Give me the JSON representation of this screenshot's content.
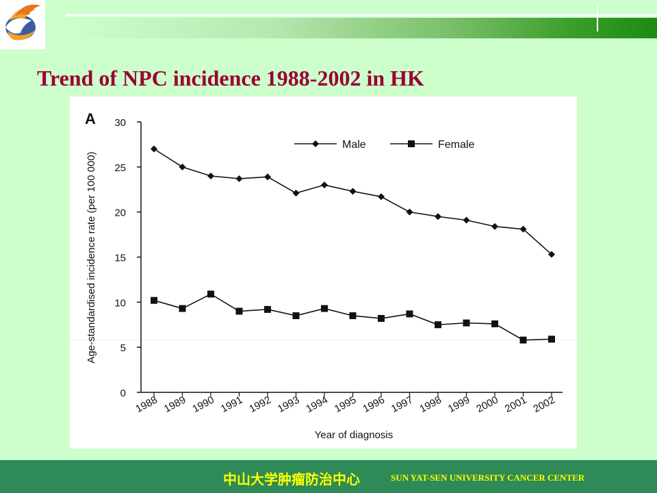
{
  "slide": {
    "title": "Trend of NPC incidence 1988-2002 in HK"
  },
  "footer": {
    "cn_text": "中山大学肿瘤防治中心",
    "en_text": "SUN YAT-SEN UNIVERSITY CANCER CENTER"
  },
  "logo": {
    "icon": "hand-flame-logo-icon"
  },
  "colors": {
    "background": "#ccffcc",
    "title": "#990033",
    "footer_bg": "#2e8b57",
    "footer_text": "#ffff00",
    "chart_ink": "#111111"
  },
  "chart_data": {
    "type": "line",
    "panel_label": "A",
    "xlabel": "Year of diagnosis",
    "ylabel": "Age-standardised incidence rate (per 100 000)",
    "x": [
      "1988",
      "1989",
      "1990",
      "1991",
      "1992",
      "1993",
      "1994",
      "1995",
      "1996",
      "1997",
      "1998",
      "1999",
      "2000",
      "2001",
      "2002"
    ],
    "ylim": [
      0,
      30
    ],
    "yticks": [
      0,
      5,
      10,
      15,
      20,
      25,
      30
    ],
    "grid": false,
    "legend_position": "top-right",
    "series": [
      {
        "name": "Male",
        "marker": "diamond",
        "values": [
          27.0,
          25.0,
          24.0,
          23.7,
          23.9,
          22.1,
          23.0,
          22.3,
          21.7,
          20.0,
          19.5,
          19.1,
          18.4,
          18.1,
          15.3
        ]
      },
      {
        "name": "Female",
        "marker": "square",
        "values": [
          10.2,
          9.3,
          10.9,
          9.0,
          9.2,
          8.5,
          9.3,
          8.5,
          8.2,
          8.7,
          7.5,
          7.7,
          7.6,
          5.8,
          5.9
        ]
      }
    ]
  }
}
